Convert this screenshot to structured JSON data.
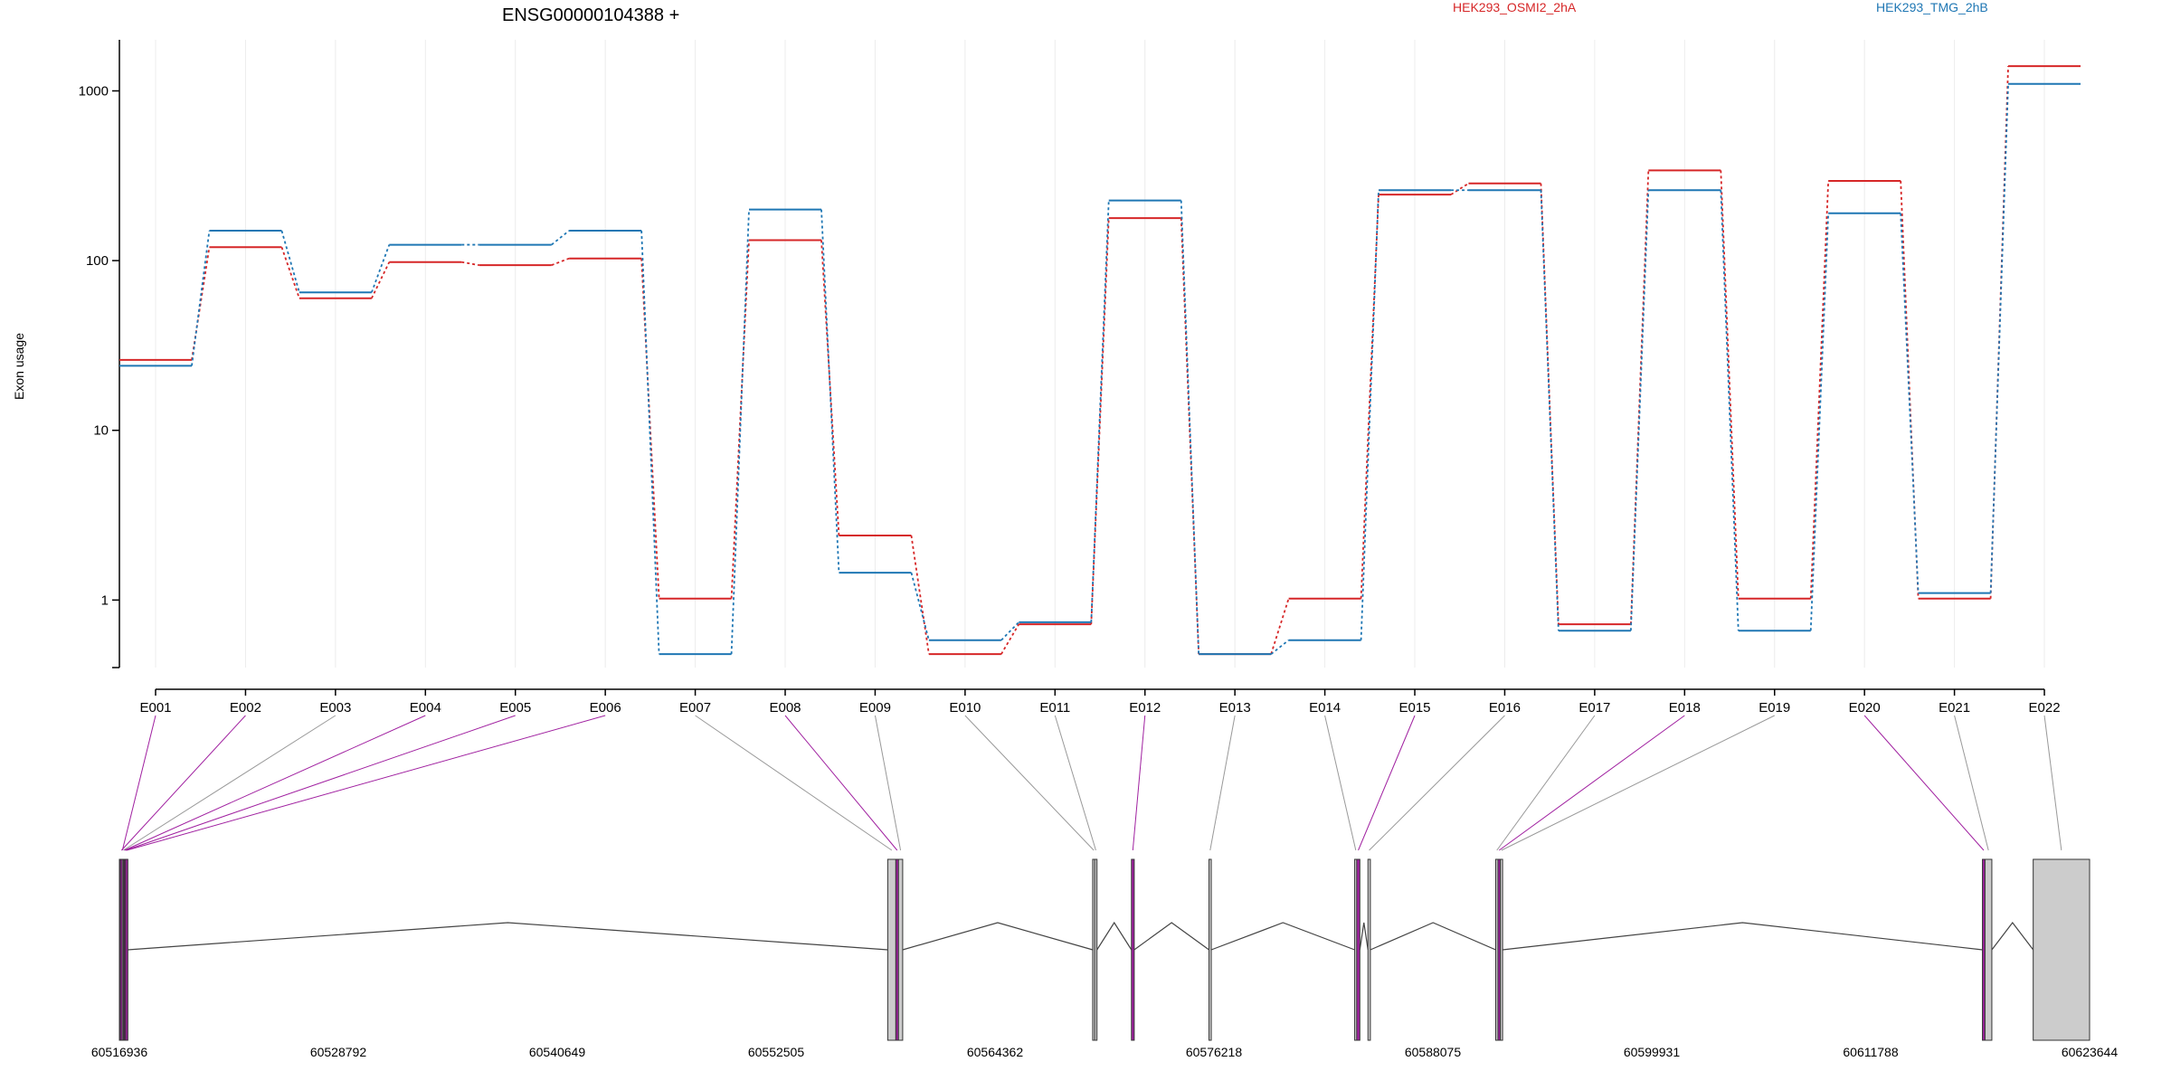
{
  "chart_data": {
    "type": "line",
    "title": "ENSG00000104388 +",
    "ylabel": "Exon usage",
    "xlabel": "",
    "y_scale": "log",
    "ylim": [
      0.4,
      2000
    ],
    "grid": "vertical",
    "legend_placement": "top-right",
    "categories": [
      "E001",
      "E002",
      "E003",
      "E004",
      "E005",
      "E006",
      "E007",
      "E008",
      "E009",
      "E010",
      "E011",
      "E012",
      "E013",
      "E014",
      "E015",
      "E016",
      "E017",
      "E018",
      "E019",
      "E020",
      "E021",
      "E022"
    ],
    "y_ticks": [
      {
        "value": 1,
        "label": "1"
      },
      {
        "value": 10,
        "label": "10"
      },
      {
        "value": 100,
        "label": "100"
      },
      {
        "value": 1000,
        "label": "1000"
      }
    ],
    "series": [
      {
        "name": "HEK293_OSMI2_2hA",
        "color": "#d62728",
        "values": [
          26,
          120,
          60,
          98,
          94,
          103,
          1.02,
          132,
          2.4,
          0.48,
          0.72,
          178,
          0.48,
          1.02,
          245,
          285,
          0.72,
          340,
          1.02,
          295,
          1.02,
          1400
        ]
      },
      {
        "name": "HEK293_TMG_2hB",
        "color": "#1f77b4",
        "values": [
          24,
          150,
          65,
          124,
          124,
          150,
          0.48,
          200,
          1.45,
          0.58,
          0.74,
          226,
          0.48,
          0.58,
          260,
          260,
          0.66,
          260,
          0.66,
          190,
          1.1,
          1100
        ]
      }
    ],
    "gene_model": {
      "genomic_start": 60516936,
      "genomic_end": 60623644,
      "coord_ticks": [
        "60516936",
        "60528792",
        "60540649",
        "60552505",
        "60564362",
        "60576218",
        "60588075",
        "60599931",
        "60611788",
        "60623644"
      ],
      "exons": [
        {
          "id": "E001",
          "start": 60516936,
          "end": 60517260
        },
        {
          "id": "E002",
          "start": 60516990,
          "end": 60517090
        },
        {
          "id": "E003",
          "start": 60517090,
          "end": 60517150
        },
        {
          "id": "E004",
          "start": 60517150,
          "end": 60517210
        },
        {
          "id": "E005",
          "start": 60517210,
          "end": 60517270
        },
        {
          "id": "E006",
          "start": 60517270,
          "end": 60517320
        },
        {
          "id": "E007",
          "start": 60558550,
          "end": 60558990
        },
        {
          "id": "E008",
          "start": 60558990,
          "end": 60559130
        },
        {
          "id": "E009",
          "start": 60559130,
          "end": 60559360
        },
        {
          "id": "E010",
          "start": 60569650,
          "end": 60569760
        },
        {
          "id": "E011",
          "start": 60569760,
          "end": 60569880
        },
        {
          "id": "E012",
          "start": 60571750,
          "end": 60571900
        },
        {
          "id": "E013",
          "start": 60575950,
          "end": 60576060
        },
        {
          "id": "E014",
          "start": 60583840,
          "end": 60583950
        },
        {
          "id": "E015",
          "start": 60583950,
          "end": 60584120
        },
        {
          "id": "E016",
          "start": 60584560,
          "end": 60584690
        },
        {
          "id": "E017",
          "start": 60591480,
          "end": 60591600
        },
        {
          "id": "E018",
          "start": 60591600,
          "end": 60591730
        },
        {
          "id": "E019",
          "start": 60591730,
          "end": 60591850
        },
        {
          "id": "E020",
          "start": 60617840,
          "end": 60617980
        },
        {
          "id": "E021",
          "start": 60617980,
          "end": 60618350
        },
        {
          "id": "E022",
          "start": 60620590,
          "end": 60623644
        }
      ],
      "highlighted_exons": [
        "E001",
        "E002",
        "E004",
        "E005",
        "E006",
        "E008",
        "E012",
        "E015",
        "E018",
        "E020"
      ],
      "highlight_color": "#a020a0",
      "exon_color": "#cccccc"
    }
  }
}
